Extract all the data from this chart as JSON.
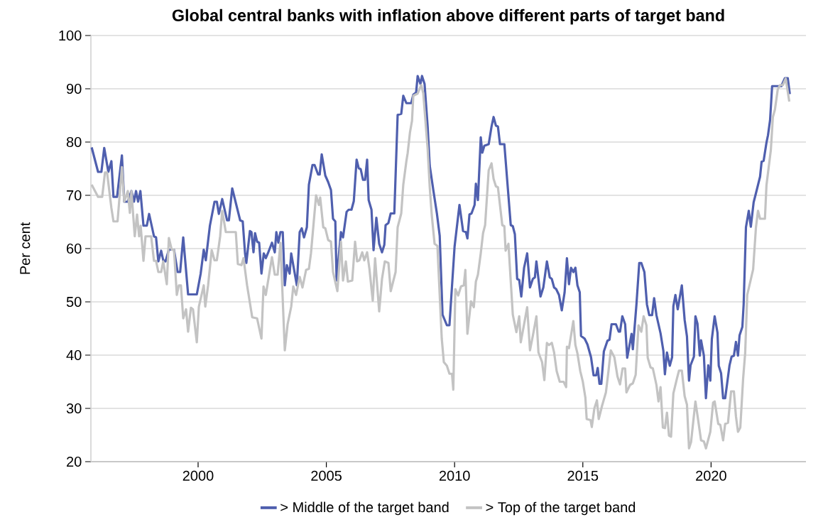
{
  "chart_data": {
    "type": "line",
    "title": "Global central banks with inflation above different parts of target band",
    "ylabel": "Per cent",
    "xlim": [
      1995.82,
      2023.7
    ],
    "xticks": [
      2000,
      2005,
      2010,
      2015,
      2020
    ],
    "ylim": [
      20,
      100
    ],
    "yticks": [
      20,
      30,
      40,
      50,
      60,
      70,
      80,
      90,
      100
    ],
    "grid": "y",
    "legend": "bottom",
    "marker": "none",
    "line_style": "solid",
    "series": [
      {
        "name": "> Middle of the target band",
        "color": "#4f5fae",
        "x": [
          1995.85,
          1996.1,
          1996.23,
          1996.34,
          1996.5,
          1996.62,
          1996.7,
          1996.84,
          1997.03,
          1997.12,
          1997.26,
          1997.4,
          1997.5,
          1997.58,
          1997.66,
          1997.75,
          1997.87,
          1998.0,
          1998.09,
          1998.28,
          1998.36,
          1998.45,
          1998.56,
          1998.64,
          1998.73,
          1998.86,
          1999.06,
          1999.2,
          1999.3,
          1999.42,
          1999.61,
          1999.95,
          2000.1,
          2000.22,
          2000.3,
          2000.46,
          2000.64,
          2000.73,
          2000.81,
          2000.94,
          2001.13,
          2001.2,
          2001.33,
          2001.64,
          2001.74,
          2001.83,
          2001.88,
          2002.02,
          2002.08,
          2002.16,
          2002.22,
          2002.3,
          2002.38,
          2002.47,
          2002.56,
          2002.64,
          2002.72,
          2002.88,
          2002.99,
          2003.05,
          2003.13,
          2003.21,
          2003.3,
          2003.38,
          2003.46,
          2003.57,
          2003.63,
          2003.71,
          2003.85,
          2003.96,
          2004.04,
          2004.13,
          2004.24,
          2004.32,
          2004.46,
          2004.54,
          2004.68,
          2004.74,
          2004.82,
          2004.96,
          2005.07,
          2005.18,
          2005.26,
          2005.35,
          2005.4,
          2005.57,
          2005.65,
          2005.79,
          2005.87,
          2005.98,
          2006.07,
          2006.18,
          2006.26,
          2006.34,
          2006.43,
          2006.51,
          2006.59,
          2006.65,
          2006.76,
          2006.84,
          2006.95,
          2007.06,
          2007.17,
          2007.26,
          2007.31,
          2007.42,
          2007.51,
          2007.65,
          2007.78,
          2007.92,
          2008.0,
          2008.12,
          2008.31,
          2008.39,
          2008.5,
          2008.56,
          2008.67,
          2008.73,
          2008.83,
          2008.95,
          2009.03,
          2009.17,
          2009.31,
          2009.42,
          2009.53,
          2009.7,
          2009.8,
          2010.0,
          2010.19,
          2010.33,
          2010.44,
          2010.5,
          2010.58,
          2010.66,
          2010.78,
          2010.83,
          2010.91,
          2011.02,
          2011.08,
          2011.16,
          2011.33,
          2011.44,
          2011.52,
          2011.61,
          2011.69,
          2011.77,
          2011.94,
          2012.19,
          2012.27,
          2012.35,
          2012.44,
          2012.52,
          2012.6,
          2012.71,
          2012.83,
          2012.94,
          2013.05,
          2013.13,
          2013.19,
          2013.35,
          2013.46,
          2013.6,
          2013.71,
          2013.79,
          2013.88,
          2013.96,
          2014.07,
          2014.18,
          2014.29,
          2014.38,
          2014.46,
          2014.54,
          2014.63,
          2014.71,
          2014.79,
          2014.88,
          2014.93,
          2015.07,
          2015.18,
          2015.32,
          2015.42,
          2015.52,
          2015.58,
          2015.65,
          2015.72,
          2015.82,
          2015.96,
          2016.04,
          2016.12,
          2016.29,
          2016.4,
          2016.45,
          2016.54,
          2016.65,
          2016.73,
          2016.81,
          2016.9,
          2016.95,
          2017.09,
          2017.2,
          2017.28,
          2017.4,
          2017.5,
          2017.59,
          2017.7,
          2017.78,
          2017.87,
          2018.03,
          2018.14,
          2018.2,
          2018.28,
          2018.39,
          2018.48,
          2018.53,
          2018.61,
          2018.7,
          2018.86,
          2018.97,
          2019.06,
          2019.14,
          2019.2,
          2019.33,
          2019.39,
          2019.47,
          2019.56,
          2019.61,
          2019.72,
          2019.8,
          2019.89,
          2019.97,
          2020.03,
          2020.14,
          2020.25,
          2020.3,
          2020.39,
          2020.47,
          2020.55,
          2020.72,
          2020.8,
          2020.89,
          2020.97,
          2021.05,
          2021.11,
          2021.22,
          2021.27,
          2021.36,
          2021.47,
          2021.55,
          2021.66,
          2021.75,
          2021.91,
          2021.97,
          2022.05,
          2022.16,
          2022.22,
          2022.3,
          2022.38,
          2022.74,
          2022.88,
          2022.99,
          2023.07
        ],
        "values": [
          79,
          74.4,
          74.4,
          78.9,
          74.4,
          76.4,
          69.7,
          69.7,
          77.5,
          68.8,
          68.8,
          70.8,
          68.8,
          70.8,
          68.8,
          70.8,
          64.3,
          64.3,
          66.5,
          62.3,
          62.1,
          57.6,
          59.6,
          57.8,
          57.6,
          59.8,
          59.8,
          55.6,
          55.6,
          62.1,
          51.4,
          51.4,
          55.3,
          59.8,
          57.8,
          64.3,
          68.8,
          68.8,
          66.5,
          69.3,
          65.3,
          65.3,
          71.3,
          65.3,
          65.1,
          59.1,
          57.3,
          63.3,
          63.1,
          59.3,
          62.9,
          61.3,
          61.1,
          55.3,
          59.1,
          58.2,
          59.1,
          61.1,
          59.3,
          63.1,
          61.1,
          63.1,
          63.1,
          53.1,
          56.9,
          55.3,
          59.1,
          56.9,
          53.1,
          63.1,
          63.8,
          62.1,
          64,
          72,
          75.7,
          75.7,
          73.9,
          73.9,
          77.7,
          73.7,
          72.5,
          71,
          65.6,
          65.1,
          54,
          63.1,
          62.1,
          66.9,
          67.3,
          67.3,
          68.9,
          76.7,
          75.1,
          74.9,
          72.9,
          72.9,
          76.7,
          69.1,
          67.3,
          59.7,
          65.8,
          60.9,
          59.3,
          60.7,
          64.4,
          64.8,
          66.6,
          66.6,
          85.1,
          85.3,
          88.7,
          87.3,
          87.3,
          88.9,
          89.3,
          92.4,
          90.9,
          92.4,
          90.9,
          82.9,
          75.6,
          71,
          66.6,
          62.4,
          47.6,
          45.6,
          45.6,
          60.4,
          68.2,
          63.3,
          63.1,
          61.9,
          66.4,
          66.6,
          68.2,
          72.2,
          69.1,
          80.9,
          78,
          79.3,
          79.6,
          82.9,
          84.7,
          83.1,
          82.9,
          79.6,
          79.6,
          64.4,
          64.2,
          62.7,
          54.3,
          54.1,
          51,
          56.4,
          59.1,
          52.7,
          54.3,
          54.6,
          57.6,
          51,
          52.7,
          57.6,
          54.6,
          54.3,
          52.7,
          52.4,
          51.3,
          48.4,
          51.8,
          58.2,
          53.3,
          56.4,
          55.6,
          56.4,
          53.1,
          51.8,
          43.6,
          43.1,
          42,
          39.6,
          36.2,
          36.2,
          37.6,
          34.6,
          34.6,
          40.7,
          42.7,
          42.9,
          45.8,
          45.8,
          44.4,
          44.4,
          47.3,
          45.8,
          39.5,
          41.6,
          44,
          41.1,
          49.5,
          57.3,
          57.3,
          55.6,
          49.5,
          47.5,
          47.5,
          50.7,
          47.5,
          44.1,
          40.8,
          36.4,
          40.5,
          38,
          39.6,
          49.2,
          51.3,
          48.6,
          53.1,
          46.6,
          43.5,
          35.2,
          38.1,
          39.7,
          47.3,
          45.9,
          39.9,
          42.8,
          39.9,
          31.9,
          38.1,
          35.2,
          43,
          47.3,
          44.2,
          38,
          36.6,
          31.9,
          31.9,
          38.1,
          39.7,
          39.9,
          42.5,
          39.9,
          43.7,
          45.3,
          49.5,
          64,
          67.1,
          64.1,
          68.7,
          70.4,
          73.5,
          76.3,
          76.5,
          79.9,
          81.3,
          84.1,
          90.5,
          90.5,
          92,
          92,
          89
        ]
      },
      {
        "name": "> Top of the target band",
        "color": "#c3c3c3",
        "x": [
          1995.85,
          1996.1,
          1996.26,
          1996.37,
          1996.45,
          1996.62,
          1996.7,
          1996.86,
          1997.03,
          1997.12,
          1997.26,
          1997.34,
          1997.4,
          1997.53,
          1997.62,
          1997.7,
          1997.76,
          1997.87,
          1997.95,
          1998.17,
          1998.28,
          1998.36,
          1998.45,
          1998.56,
          1998.64,
          1998.78,
          1998.86,
          1998.97,
          1999.06,
          1999.17,
          1999.25,
          1999.33,
          1999.42,
          1999.53,
          1999.61,
          1999.72,
          1999.8,
          1999.95,
          2000.03,
          2000.22,
          2000.28,
          2000.39,
          2000.53,
          2000.64,
          2000.73,
          2000.86,
          2000.94,
          2001.08,
          2001.47,
          2001.55,
          2001.69,
          2001.77,
          2001.91,
          2002.11,
          2002.3,
          2002.47,
          2002.55,
          2002.64,
          2002.88,
          2002.99,
          2003.1,
          2003.21,
          2003.38,
          2003.49,
          2003.63,
          2003.71,
          2003.82,
          2003.96,
          2004.07,
          2004.21,
          2004.32,
          2004.4,
          2004.6,
          2004.71,
          2004.76,
          2004.88,
          2004.96,
          2005.07,
          2005.18,
          2005.26,
          2005.43,
          2005.57,
          2005.65,
          2005.76,
          2005.84,
          2006.01,
          2006.12,
          2006.2,
          2006.29,
          2006.4,
          2006.48,
          2006.59,
          2006.68,
          2006.81,
          2006.9,
          2007.06,
          2007.17,
          2007.28,
          2007.42,
          2007.51,
          2007.7,
          2007.78,
          2007.92,
          2008.0,
          2008.12,
          2008.17,
          2008.26,
          2008.34,
          2008.39,
          2008.56,
          2008.7,
          2008.78,
          2008.95,
          2009.03,
          2009.11,
          2009.22,
          2009.33,
          2009.5,
          2009.58,
          2009.7,
          2009.8,
          2009.9,
          2009.95,
          2010.03,
          2010.14,
          2010.25,
          2010.36,
          2010.42,
          2010.5,
          2010.64,
          2010.75,
          2010.83,
          2010.91,
          2011.02,
          2011.11,
          2011.19,
          2011.33,
          2011.44,
          2011.52,
          2011.61,
          2011.69,
          2011.86,
          2011.94,
          2011.99,
          2012.1,
          2012.27,
          2012.41,
          2012.52,
          2012.58,
          2012.71,
          2012.83,
          2012.94,
          2013.05,
          2013.19,
          2013.27,
          2013.41,
          2013.5,
          2013.6,
          2013.68,
          2013.79,
          2013.88,
          2013.98,
          2014.1,
          2014.25,
          2014.35,
          2014.38,
          2014.46,
          2014.63,
          2014.71,
          2014.79,
          2014.9,
          2015.0,
          2015.1,
          2015.15,
          2015.3,
          2015.35,
          2015.45,
          2015.55,
          2015.62,
          2015.75,
          2015.9,
          2016.0,
          2016.09,
          2016.23,
          2016.35,
          2016.45,
          2016.55,
          2016.65,
          2016.7,
          2016.84,
          2016.95,
          2017.06,
          2017.17,
          2017.28,
          2017.37,
          2017.48,
          2017.53,
          2017.64,
          2017.73,
          2017.87,
          2017.95,
          2018.03,
          2018.12,
          2018.2,
          2018.28,
          2018.36,
          2018.44,
          2018.53,
          2018.67,
          2018.75,
          2018.86,
          2018.97,
          2019.06,
          2019.14,
          2019.22,
          2019.39,
          2019.47,
          2019.61,
          2019.72,
          2019.8,
          2019.97,
          2020.08,
          2020.14,
          2020.28,
          2020.36,
          2020.47,
          2020.55,
          2020.66,
          2020.78,
          2020.89,
          2020.97,
          2021.05,
          2021.14,
          2021.25,
          2021.33,
          2021.41,
          2021.64,
          2021.75,
          2021.83,
          2021.91,
          2022.1,
          2022.16,
          2022.33,
          2022.41,
          2022.49,
          2022.6,
          2022.69,
          2022.8,
          2022.91,
          2023.05
        ],
        "values": [
          72,
          69.7,
          69.7,
          74.3,
          74.3,
          67.6,
          65.1,
          65.1,
          75.3,
          68.8,
          70.8,
          66.7,
          70.8,
          62.3,
          66.4,
          62.3,
          64.3,
          57.7,
          62.3,
          62.3,
          57.7,
          57.7,
          55.6,
          55.6,
          57.6,
          53.3,
          62,
          59.8,
          59.8,
          51.3,
          53.1,
          53.1,
          46.9,
          48.6,
          44.4,
          48.9,
          48.6,
          42.4,
          49.1,
          53.1,
          49.1,
          53.1,
          59.7,
          57.8,
          57.8,
          62.3,
          67.1,
          63.1,
          63.1,
          57.1,
          56.9,
          58.2,
          53.1,
          47.1,
          46.9,
          43.1,
          52.9,
          51.3,
          58.4,
          55.1,
          55.1,
          61.1,
          40.9,
          45.8,
          49.1,
          52.9,
          51.3,
          54.7,
          52.7,
          56,
          56.2,
          59.1,
          70,
          68.2,
          69.6,
          64,
          63.8,
          61.6,
          61.3,
          55.6,
          52,
          61.3,
          54,
          57.6,
          53.8,
          54,
          61.3,
          57.6,
          57.8,
          59.3,
          57.8,
          59.3,
          56.2,
          50.2,
          58.2,
          48.2,
          54.3,
          57.6,
          57.3,
          52,
          55.6,
          64,
          66.6,
          72,
          76.4,
          77.9,
          81.8,
          84,
          88.7,
          89.1,
          90.7,
          89.1,
          78.7,
          71.6,
          66.3,
          60.9,
          60.5,
          43.1,
          38.7,
          38,
          36.5,
          36.5,
          33.5,
          52.4,
          51.2,
          52.9,
          53.1,
          56,
          44,
          50.1,
          49,
          53.8,
          55.1,
          59.1,
          62.9,
          64.4,
          74.7,
          76,
          73.1,
          71.7,
          71.5,
          64.4,
          64.2,
          59.6,
          60.9,
          47.6,
          44.3,
          47.3,
          42.4,
          45.8,
          49,
          40.9,
          43.6,
          47.3,
          40.5,
          38.7,
          35.3,
          42.3,
          41.9,
          42.3,
          40.5,
          37,
          35,
          35,
          34,
          41.6,
          41.3,
          46.4,
          41.9,
          40.3,
          37,
          35,
          32,
          28,
          27.8,
          26.5,
          30,
          31.5,
          28,
          30.5,
          33,
          37,
          40.9,
          39.6,
          36,
          34.5,
          37.5,
          37.5,
          33,
          34.4,
          34.7,
          36.3,
          45.6,
          44.4,
          47.3,
          45.6,
          39.5,
          37.7,
          37.5,
          34.4,
          31.3,
          34,
          26.4,
          26.3,
          29.2,
          24.9,
          24.7,
          32.8,
          35.6,
          37.1,
          37.1,
          32.3,
          30.7,
          22.5,
          23.7,
          31.3,
          28.7,
          24,
          23.8,
          22.5,
          25.6,
          31.1,
          31.3,
          27.1,
          26.9,
          24,
          27.1,
          27.3,
          33.2,
          33.2,
          28.5,
          25.6,
          26.4,
          35.6,
          40.4,
          51.3,
          56.1,
          64,
          67.1,
          65.6,
          65.6,
          71.9,
          78.5,
          84.7,
          86.1,
          89.9,
          90.7,
          90.7,
          91.9,
          87.6
        ]
      }
    ]
  }
}
